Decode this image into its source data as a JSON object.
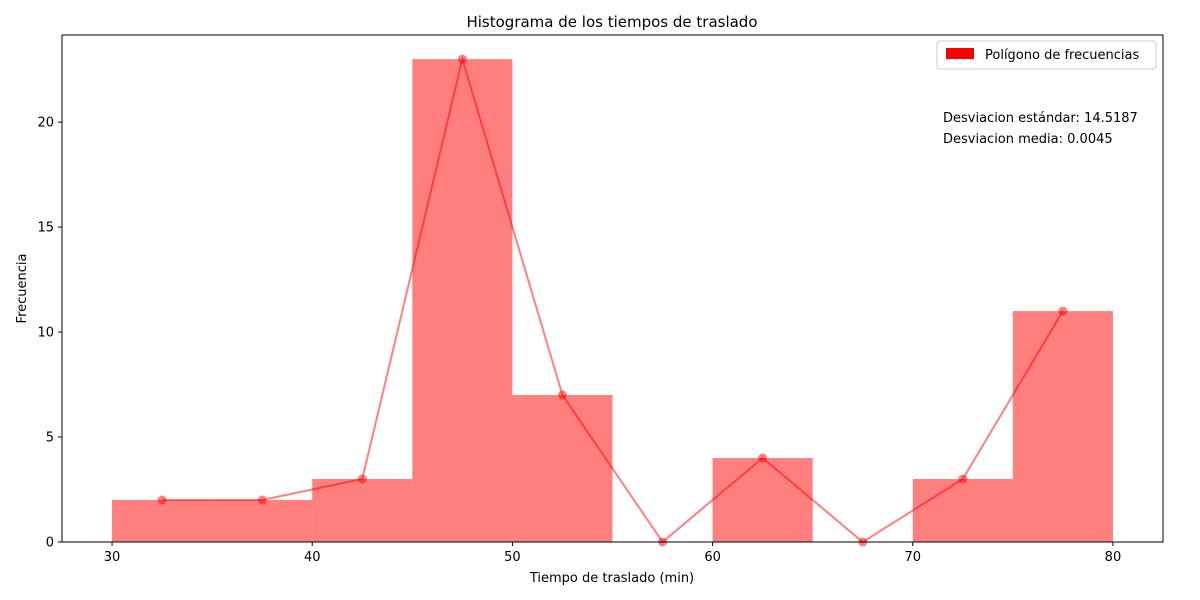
{
  "chart_data": {
    "type": "bar",
    "title": "Histograma de los tiempos de traslado",
    "xlabel": "Tiempo de traslado (min)",
    "ylabel": "Frecuencia",
    "xlim": [
      27.5,
      82.5
    ],
    "ylim": [
      0,
      24.15
    ],
    "xticks": [
      30,
      40,
      50,
      60,
      70,
      80
    ],
    "yticks": [
      0,
      5,
      10,
      15,
      20
    ],
    "bins": [
      {
        "start": 30,
        "end": 35,
        "value": 2
      },
      {
        "start": 35,
        "end": 40,
        "value": 2
      },
      {
        "start": 40,
        "end": 45,
        "value": 3
      },
      {
        "start": 45,
        "end": 50,
        "value": 23
      },
      {
        "start": 50,
        "end": 55,
        "value": 7
      },
      {
        "start": 55,
        "end": 60,
        "value": 0
      },
      {
        "start": 60,
        "end": 65,
        "value": 4
      },
      {
        "start": 65,
        "end": 70,
        "value": 0
      },
      {
        "start": 70,
        "end": 75,
        "value": 3
      },
      {
        "start": 75,
        "end": 80,
        "value": 11
      }
    ],
    "polygon": {
      "name": "Polígono de frecuencias",
      "x": [
        32.5,
        37.5,
        42.5,
        47.5,
        52.5,
        57.5,
        62.5,
        67.5,
        72.5,
        77.5
      ],
      "y": [
        2,
        2,
        3,
        23,
        7,
        0,
        4,
        0,
        3,
        11
      ]
    },
    "colors": {
      "bar": "#ff0000",
      "bar_alpha": 0.5,
      "line": "#ff0000",
      "line_alpha": 0.5,
      "legend_patch": "#ff0000"
    },
    "legend": {
      "placement": "top-right",
      "entries": [
        "Polígono de frecuencias"
      ]
    },
    "annotations": [
      "Desviacion estándar: 14.5187",
      "Desviacion media: 0.0045"
    ],
    "grid": false
  }
}
